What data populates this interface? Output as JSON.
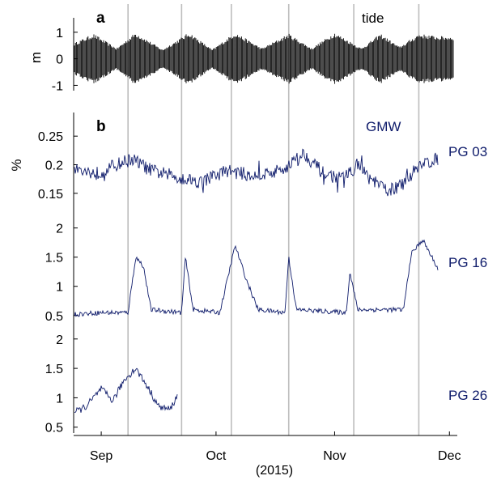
{
  "chart_data": [
    {
      "type": "line",
      "panel_label": "a",
      "series_label": "tide",
      "ylabel": "m",
      "ylim": [
        -1.2,
        1.3
      ],
      "yticks": [
        -1,
        0,
        1
      ],
      "ytick_labels": [
        "-1",
        "0",
        "1"
      ],
      "color": "#000000",
      "amplitude_envelope": {
        "x": [
          "2015-08-25",
          "2015-08-30",
          "2015-09-05",
          "2015-09-10",
          "2015-09-17",
          "2015-09-24",
          "2015-09-30",
          "2015-10-06",
          "2015-10-13",
          "2015-10-20",
          "2015-10-26",
          "2015-11-01",
          "2015-11-08",
          "2015-11-13",
          "2015-11-18",
          "2015-11-23",
          "2015-11-28"
        ],
        "y": [
          0.6,
          0.95,
          0.4,
          1.0,
          0.35,
          1.0,
          0.35,
          1.0,
          0.4,
          0.95,
          0.4,
          1.0,
          0.4,
          0.95,
          0.45,
          0.95,
          0.85
        ]
      }
    },
    {
      "type": "line",
      "panel_label": "b",
      "series_label": "PG 03",
      "group_label": "GMW",
      "ylabel": "%",
      "ylim": [
        0.12,
        0.28
      ],
      "yticks": [
        0.15,
        0.2,
        0.25
      ],
      "ytick_labels": [
        "0.15",
        "0.2",
        "0.25"
      ],
      "color": "#0d1a6a",
      "x": [
        "2015-08-25",
        "2015-08-31",
        "2015-09-05",
        "2015-09-09",
        "2015-09-14",
        "2015-09-20",
        "2015-09-27",
        "2015-10-04",
        "2015-10-11",
        "2015-10-18",
        "2015-10-24",
        "2015-10-29",
        "2015-11-03",
        "2015-11-07",
        "2015-11-11",
        "2015-11-15",
        "2015-11-19",
        "2015-11-23",
        "2015-11-28"
      ],
      "y": [
        0.19,
        0.185,
        0.2,
        0.21,
        0.19,
        0.18,
        0.17,
        0.19,
        0.18,
        0.19,
        0.22,
        0.185,
        0.175,
        0.2,
        0.17,
        0.155,
        0.165,
        0.2,
        0.21
      ]
    },
    {
      "type": "line",
      "series_label": "PG 16",
      "ylim": [
        0.4,
        2.3
      ],
      "yticks": [
        0.5,
        1,
        1.5,
        2
      ],
      "ytick_labels": [
        "0.5",
        "1",
        "1.5",
        "2"
      ],
      "color": "#0d1a6a",
      "x": [
        "2015-08-25",
        "2015-09-01",
        "2015-09-08",
        "2015-09-10",
        "2015-09-12",
        "2015-09-14",
        "2015-09-22",
        "2015-09-23",
        "2015-09-25",
        "2015-10-02",
        "2015-10-06",
        "2015-10-09",
        "2015-10-12",
        "2015-10-19",
        "2015-10-20",
        "2015-10-22",
        "2015-11-04",
        "2015-11-05",
        "2015-11-07",
        "2015-11-19",
        "2015-11-21",
        "2015-11-24",
        "2015-11-28"
      ],
      "y": [
        0.52,
        0.55,
        0.55,
        1.5,
        1.35,
        0.6,
        0.55,
        1.5,
        0.6,
        0.55,
        1.7,
        1.1,
        0.6,
        0.55,
        1.5,
        0.6,
        0.55,
        1.25,
        0.6,
        0.6,
        1.55,
        1.8,
        1.3
      ]
    },
    {
      "type": "line",
      "series_label": "PG 26",
      "ylim": [
        0.4,
        2.3
      ],
      "yticks": [
        0.5,
        1,
        1.5,
        2
      ],
      "ytick_labels": [
        "0.5",
        "1",
        "1.5",
        "2"
      ],
      "color": "#0d1a6a",
      "x": [
        "2015-08-25",
        "2015-08-28",
        "2015-09-01",
        "2015-09-04",
        "2015-09-07",
        "2015-09-10",
        "2015-09-13",
        "2015-09-16",
        "2015-09-19",
        "2015-09-21"
      ],
      "y": [
        0.75,
        0.85,
        1.15,
        0.95,
        1.3,
        1.5,
        1.2,
        0.85,
        0.8,
        1.05
      ]
    }
  ],
  "x_axis": {
    "label": "(2015)",
    "start": "2015-08-25",
    "end": "2015-12-02",
    "ticks": [
      "2015-09-01",
      "2015-10-01",
      "2015-11-01",
      "2015-12-01"
    ],
    "tick_labels": [
      "Sep",
      "Oct",
      "Nov",
      "Dec"
    ]
  },
  "vertical_lines": [
    "2015-09-08",
    "2015-09-22",
    "2015-10-05",
    "2015-10-20",
    "2015-11-06",
    "2015-11-23"
  ]
}
